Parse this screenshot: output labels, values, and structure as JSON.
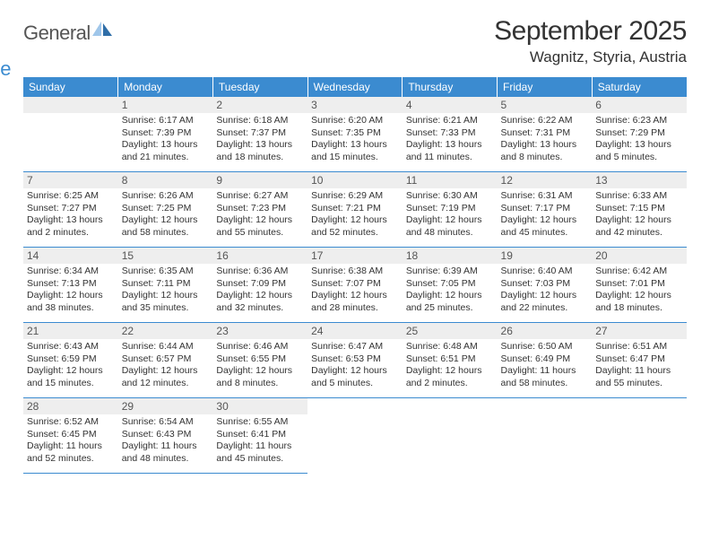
{
  "brand": {
    "name_main": "General",
    "name_sub": "Blue",
    "icon_color_light": "#9fc6ea",
    "icon_color_dark": "#2f6ea8"
  },
  "header": {
    "month_title": "September 2025",
    "location": "Wagnitz, Styria, Austria"
  },
  "styling": {
    "header_bg": "#3b8bd0",
    "header_text": "#ffffff",
    "daynum_bg": "#eeeeee",
    "cell_divider": "#3b8bd0",
    "body_text": "#333333",
    "page_bg": "#ffffff",
    "dayname_fontsize": 12,
    "title_fontsize": 30,
    "location_fontsize": 17,
    "info_fontsize": 10.5
  },
  "day_names": [
    "Sunday",
    "Monday",
    "Tuesday",
    "Wednesday",
    "Thursday",
    "Friday",
    "Saturday"
  ],
  "weeks": [
    [
      null,
      {
        "n": "1",
        "sr": "Sunrise: 6:17 AM",
        "ss": "Sunset: 7:39 PM",
        "d1": "Daylight: 13 hours",
        "d2": "and 21 minutes."
      },
      {
        "n": "2",
        "sr": "Sunrise: 6:18 AM",
        "ss": "Sunset: 7:37 PM",
        "d1": "Daylight: 13 hours",
        "d2": "and 18 minutes."
      },
      {
        "n": "3",
        "sr": "Sunrise: 6:20 AM",
        "ss": "Sunset: 7:35 PM",
        "d1": "Daylight: 13 hours",
        "d2": "and 15 minutes."
      },
      {
        "n": "4",
        "sr": "Sunrise: 6:21 AM",
        "ss": "Sunset: 7:33 PM",
        "d1": "Daylight: 13 hours",
        "d2": "and 11 minutes."
      },
      {
        "n": "5",
        "sr": "Sunrise: 6:22 AM",
        "ss": "Sunset: 7:31 PM",
        "d1": "Daylight: 13 hours",
        "d2": "and 8 minutes."
      },
      {
        "n": "6",
        "sr": "Sunrise: 6:23 AM",
        "ss": "Sunset: 7:29 PM",
        "d1": "Daylight: 13 hours",
        "d2": "and 5 minutes."
      }
    ],
    [
      {
        "n": "7",
        "sr": "Sunrise: 6:25 AM",
        "ss": "Sunset: 7:27 PM",
        "d1": "Daylight: 13 hours",
        "d2": "and 2 minutes."
      },
      {
        "n": "8",
        "sr": "Sunrise: 6:26 AM",
        "ss": "Sunset: 7:25 PM",
        "d1": "Daylight: 12 hours",
        "d2": "and 58 minutes."
      },
      {
        "n": "9",
        "sr": "Sunrise: 6:27 AM",
        "ss": "Sunset: 7:23 PM",
        "d1": "Daylight: 12 hours",
        "d2": "and 55 minutes."
      },
      {
        "n": "10",
        "sr": "Sunrise: 6:29 AM",
        "ss": "Sunset: 7:21 PM",
        "d1": "Daylight: 12 hours",
        "d2": "and 52 minutes."
      },
      {
        "n": "11",
        "sr": "Sunrise: 6:30 AM",
        "ss": "Sunset: 7:19 PM",
        "d1": "Daylight: 12 hours",
        "d2": "and 48 minutes."
      },
      {
        "n": "12",
        "sr": "Sunrise: 6:31 AM",
        "ss": "Sunset: 7:17 PM",
        "d1": "Daylight: 12 hours",
        "d2": "and 45 minutes."
      },
      {
        "n": "13",
        "sr": "Sunrise: 6:33 AM",
        "ss": "Sunset: 7:15 PM",
        "d1": "Daylight: 12 hours",
        "d2": "and 42 minutes."
      }
    ],
    [
      {
        "n": "14",
        "sr": "Sunrise: 6:34 AM",
        "ss": "Sunset: 7:13 PM",
        "d1": "Daylight: 12 hours",
        "d2": "and 38 minutes."
      },
      {
        "n": "15",
        "sr": "Sunrise: 6:35 AM",
        "ss": "Sunset: 7:11 PM",
        "d1": "Daylight: 12 hours",
        "d2": "and 35 minutes."
      },
      {
        "n": "16",
        "sr": "Sunrise: 6:36 AM",
        "ss": "Sunset: 7:09 PM",
        "d1": "Daylight: 12 hours",
        "d2": "and 32 minutes."
      },
      {
        "n": "17",
        "sr": "Sunrise: 6:38 AM",
        "ss": "Sunset: 7:07 PM",
        "d1": "Daylight: 12 hours",
        "d2": "and 28 minutes."
      },
      {
        "n": "18",
        "sr": "Sunrise: 6:39 AM",
        "ss": "Sunset: 7:05 PM",
        "d1": "Daylight: 12 hours",
        "d2": "and 25 minutes."
      },
      {
        "n": "19",
        "sr": "Sunrise: 6:40 AM",
        "ss": "Sunset: 7:03 PM",
        "d1": "Daylight: 12 hours",
        "d2": "and 22 minutes."
      },
      {
        "n": "20",
        "sr": "Sunrise: 6:42 AM",
        "ss": "Sunset: 7:01 PM",
        "d1": "Daylight: 12 hours",
        "d2": "and 18 minutes."
      }
    ],
    [
      {
        "n": "21",
        "sr": "Sunrise: 6:43 AM",
        "ss": "Sunset: 6:59 PM",
        "d1": "Daylight: 12 hours",
        "d2": "and 15 minutes."
      },
      {
        "n": "22",
        "sr": "Sunrise: 6:44 AM",
        "ss": "Sunset: 6:57 PM",
        "d1": "Daylight: 12 hours",
        "d2": "and 12 minutes."
      },
      {
        "n": "23",
        "sr": "Sunrise: 6:46 AM",
        "ss": "Sunset: 6:55 PM",
        "d1": "Daylight: 12 hours",
        "d2": "and 8 minutes."
      },
      {
        "n": "24",
        "sr": "Sunrise: 6:47 AM",
        "ss": "Sunset: 6:53 PM",
        "d1": "Daylight: 12 hours",
        "d2": "and 5 minutes."
      },
      {
        "n": "25",
        "sr": "Sunrise: 6:48 AM",
        "ss": "Sunset: 6:51 PM",
        "d1": "Daylight: 12 hours",
        "d2": "and 2 minutes."
      },
      {
        "n": "26",
        "sr": "Sunrise: 6:50 AM",
        "ss": "Sunset: 6:49 PM",
        "d1": "Daylight: 11 hours",
        "d2": "and 58 minutes."
      },
      {
        "n": "27",
        "sr": "Sunrise: 6:51 AM",
        "ss": "Sunset: 6:47 PM",
        "d1": "Daylight: 11 hours",
        "d2": "and 55 minutes."
      }
    ],
    [
      {
        "n": "28",
        "sr": "Sunrise: 6:52 AM",
        "ss": "Sunset: 6:45 PM",
        "d1": "Daylight: 11 hours",
        "d2": "and 52 minutes."
      },
      {
        "n": "29",
        "sr": "Sunrise: 6:54 AM",
        "ss": "Sunset: 6:43 PM",
        "d1": "Daylight: 11 hours",
        "d2": "and 48 minutes."
      },
      {
        "n": "30",
        "sr": "Sunrise: 6:55 AM",
        "ss": "Sunset: 6:41 PM",
        "d1": "Daylight: 11 hours",
        "d2": "and 45 minutes."
      },
      null,
      null,
      null,
      null
    ]
  ]
}
